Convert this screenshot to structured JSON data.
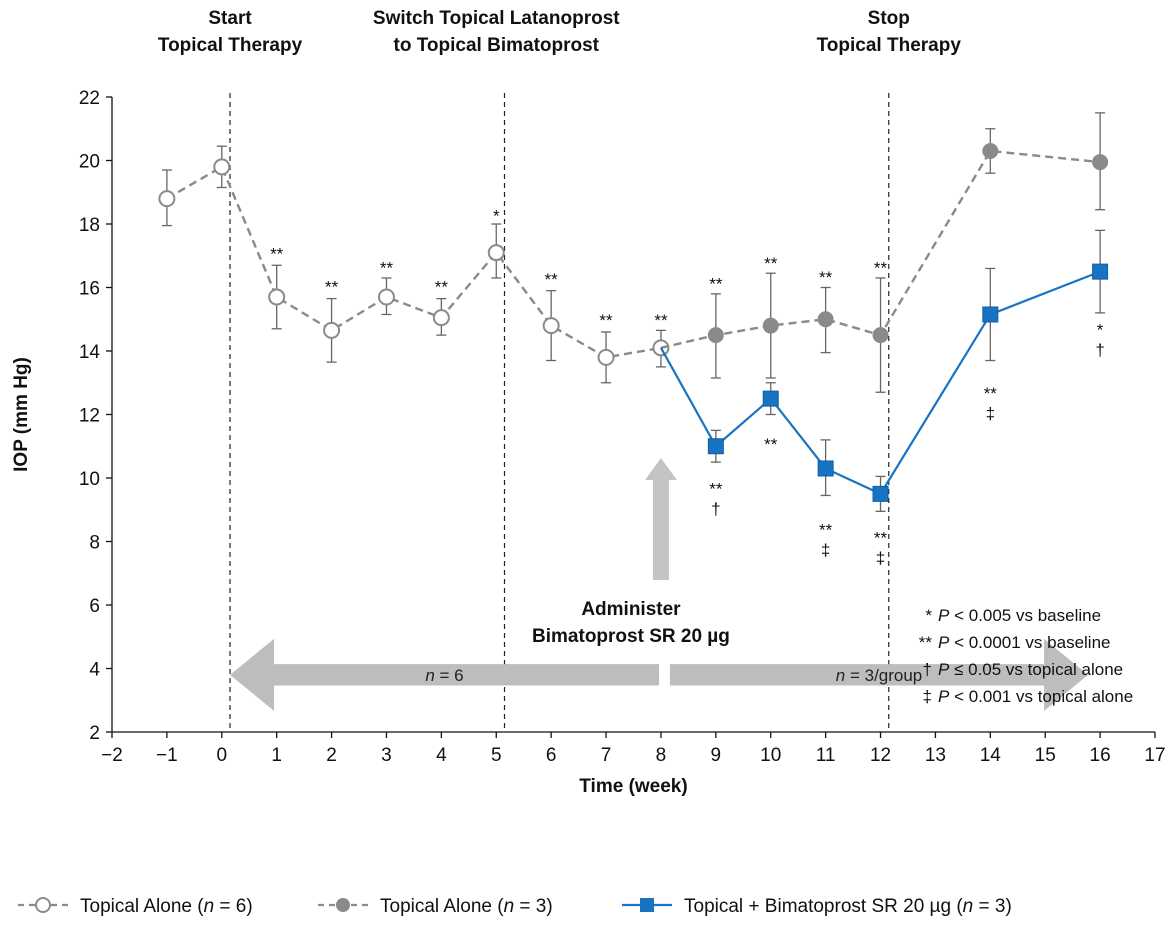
{
  "chart_data": {
    "type": "line",
    "xlabel": "Time (week)",
    "ylabel": "IOP (mm Hg)",
    "xlim": [
      -2,
      17
    ],
    "ylim": [
      2,
      22
    ],
    "xticks": [
      "−2",
      "−1",
      "0",
      "1",
      "2",
      "3",
      "4",
      "5",
      "6",
      "7",
      "8",
      "9",
      "10",
      "11",
      "12",
      "13",
      "14",
      "15",
      "16",
      "17"
    ],
    "yticks": [
      "2",
      "4",
      "6",
      "8",
      "10",
      "12",
      "14",
      "16",
      "18",
      "20",
      "22"
    ],
    "series": [
      {
        "name_parts": [
          "Topical Alone (",
          "n",
          " = 6)"
        ],
        "style": "open-circle-dashed",
        "color": "#8a8a8a",
        "points": [
          {
            "x": -1,
            "y": 18.8,
            "lo": 17.95,
            "hi": 19.7
          },
          {
            "x": 0,
            "y": 19.8,
            "lo": 19.15,
            "hi": 20.45
          },
          {
            "x": 1,
            "y": 15.7,
            "lo": 14.7,
            "hi": 16.7
          },
          {
            "x": 2,
            "y": 14.65,
            "lo": 13.65,
            "hi": 15.65
          },
          {
            "x": 3,
            "y": 15.7,
            "lo": 15.15,
            "hi": 16.3
          },
          {
            "x": 4,
            "y": 15.05,
            "lo": 14.5,
            "hi": 15.65
          },
          {
            "x": 5,
            "y": 17.1,
            "lo": 16.3,
            "hi": 18.0
          },
          {
            "x": 6,
            "y": 14.8,
            "lo": 13.7,
            "hi": 15.9
          },
          {
            "x": 7,
            "y": 13.8,
            "lo": 13.0,
            "hi": 14.6
          },
          {
            "x": 8,
            "y": 14.1,
            "lo": 13.5,
            "hi": 14.65
          }
        ]
      },
      {
        "name_parts": [
          "Topical Alone (",
          "n",
          " = 3)"
        ],
        "style": "filled-circle-dashed",
        "color": "#8a8a8a",
        "points": [
          {
            "x": 8,
            "y": 14.1
          },
          {
            "x": 9,
            "y": 14.5,
            "lo": 13.15,
            "hi": 15.8
          },
          {
            "x": 10,
            "y": 14.8,
            "lo": 13.15,
            "hi": 16.45
          },
          {
            "x": 11,
            "y": 15.0,
            "lo": 13.95,
            "hi": 16.0
          },
          {
            "x": 12,
            "y": 14.5,
            "lo": 12.7,
            "hi": 16.3
          },
          {
            "x": 14,
            "y": 20.3,
            "lo": 19.6,
            "hi": 21.0
          },
          {
            "x": 16,
            "y": 19.95,
            "lo": 18.45,
            "hi": 21.5
          }
        ]
      },
      {
        "name_parts": [
          "Topical + Bimatoprost SR 20 µg (",
          "n",
          " = 3)"
        ],
        "style": "filled-square-solid",
        "color": "#1874c3",
        "points": [
          {
            "x": 8,
            "y": 14.1
          },
          {
            "x": 9,
            "y": 11.0,
            "lo": 10.5,
            "hi": 11.5
          },
          {
            "x": 10,
            "y": 12.5,
            "lo": 12.0,
            "hi": 13.0
          },
          {
            "x": 11,
            "y": 10.3,
            "lo": 9.45,
            "hi": 11.2
          },
          {
            "x": 12,
            "y": 9.5,
            "lo": 8.95,
            "hi": 10.05
          },
          {
            "x": 14,
            "y": 15.15,
            "lo": 13.7,
            "hi": 16.6
          },
          {
            "x": 16,
            "y": 16.5,
            "lo": 15.2,
            "hi": 17.8
          }
        ]
      }
    ],
    "vlines": [
      0.15,
      5.15,
      12.15
    ],
    "phase_labels": [
      {
        "x": 0.15,
        "lines": [
          "Start",
          "Topical Therapy"
        ]
      },
      {
        "x": 5.0,
        "lines": [
          "Switch Topical Latanoprost",
          "to Topical Bimatoprost"
        ]
      },
      {
        "x": 12.15,
        "lines": [
          "Stop",
          "Topical Therapy"
        ]
      }
    ],
    "significance": [
      {
        "x": 1,
        "y": 17.2,
        "lines": [
          "**"
        ]
      },
      {
        "x": 2,
        "y": 16.15,
        "lines": [
          "**"
        ]
      },
      {
        "x": 3,
        "y": 16.75,
        "lines": [
          "**"
        ]
      },
      {
        "x": 4,
        "y": 16.15,
        "lines": [
          "**"
        ]
      },
      {
        "x": 5,
        "y": 18.4,
        "lines": [
          "*"
        ]
      },
      {
        "x": 6,
        "y": 16.4,
        "lines": [
          "**"
        ]
      },
      {
        "x": 7,
        "y": 15.1,
        "lines": [
          "**"
        ]
      },
      {
        "x": 8,
        "y": 15.1,
        "lines": [
          "**"
        ]
      },
      {
        "x": 9,
        "y": 16.25,
        "lines": [
          "**"
        ]
      },
      {
        "x": 10,
        "y": 16.9,
        "lines": [
          "**"
        ]
      },
      {
        "x": 11,
        "y": 16.45,
        "lines": [
          "**"
        ]
      },
      {
        "x": 12,
        "y": 16.75,
        "lines": [
          "**"
        ]
      },
      {
        "x": 9,
        "y": 9.8,
        "lines": [
          "**",
          "†"
        ]
      },
      {
        "x": 10,
        "y": 11.2,
        "lines": [
          "**"
        ]
      },
      {
        "x": 11,
        "y": 8.5,
        "lines": [
          "**",
          "‡"
        ]
      },
      {
        "x": 12,
        "y": 8.25,
        "lines": [
          "**",
          "‡"
        ]
      },
      {
        "x": 14,
        "y": 12.8,
        "lines": [
          "**",
          "‡"
        ]
      },
      {
        "x": 16,
        "y": 14.8,
        "lines": [
          "*",
          "†"
        ]
      }
    ],
    "administer": {
      "x": 8.0,
      "lines": [
        "Administer",
        "Bimatoprost SR 20 µg"
      ]
    },
    "sample_bands": [
      {
        "label_parts": [
          "n",
          " = 6"
        ],
        "from": 0.15,
        "to": 8.0
      },
      {
        "label_parts": [
          "n",
          " = 3/group"
        ],
        "from": 8.2,
        "to": 16.0
      }
    ],
    "footnotes": [
      {
        "sym": "*",
        "p": "P",
        "rest": " < 0.005 vs baseline"
      },
      {
        "sym": "**",
        "p": "P",
        "rest": " < 0.0001 vs baseline"
      },
      {
        "sym": "†",
        "p": "P",
        "rest": " ≤ 0.05 vs topical alone"
      },
      {
        "sym": "‡",
        "p": "P",
        "rest": " < 0.001 vs topical alone"
      }
    ]
  }
}
